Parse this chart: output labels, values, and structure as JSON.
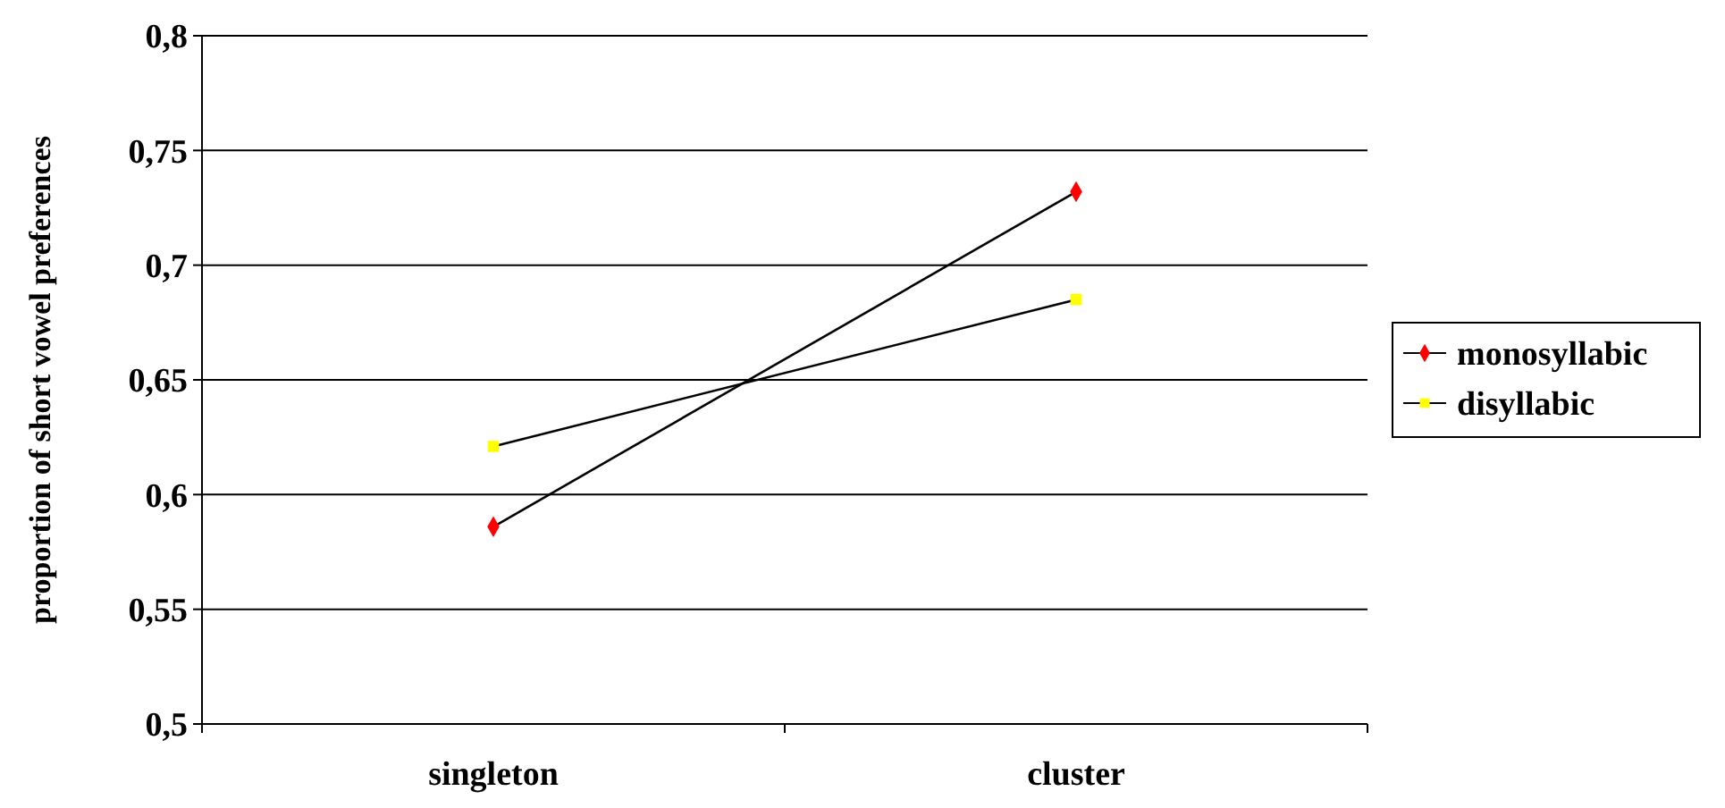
{
  "chart_data": {
    "type": "line",
    "ylabel": "proportion of short vowel preferences",
    "categories": [
      "singleton",
      "cluster"
    ],
    "series": [
      {
        "name": "monosyllabic",
        "color": "#ff0000",
        "values": [
          0.586,
          0.732
        ],
        "marker": "diamond"
      },
      {
        "name": "disyllabic",
        "color": "#ffff00",
        "values": [
          0.621,
          0.685
        ],
        "marker": "square"
      }
    ],
    "ylim": [
      0.5,
      0.8
    ],
    "yticks": [
      {
        "value": 0.5,
        "label": "0,5"
      },
      {
        "value": 0.55,
        "label": "0,55"
      },
      {
        "value": 0.6,
        "label": "0,6"
      },
      {
        "value": 0.65,
        "label": "0,65"
      },
      {
        "value": 0.7,
        "label": "0,7"
      },
      {
        "value": 0.75,
        "label": "0,75"
      },
      {
        "value": 0.8,
        "label": "0,8"
      }
    ],
    "grid": "y",
    "legend": "right",
    "line_style": "solid"
  }
}
